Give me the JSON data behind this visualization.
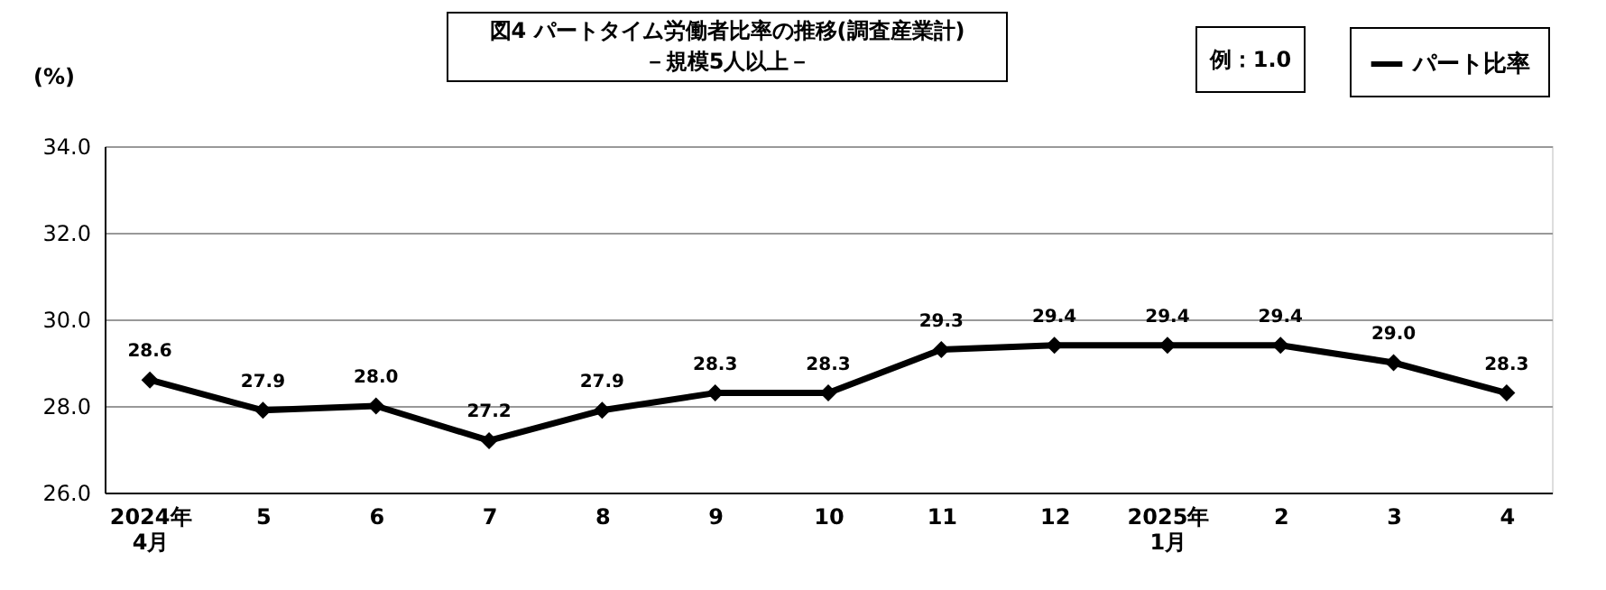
{
  "chart_data": {
    "type": "line",
    "title": [
      "図4  パートタイム労働者比率の推移(調査産業計)",
      "－規模5人以上－"
    ],
    "ylabel": "(%)",
    "categories": [
      "2024年\n4月",
      "5",
      "6",
      "7",
      "8",
      "9",
      "10",
      "11",
      "12",
      "2025年\n1月",
      "2",
      "3",
      "4"
    ],
    "series": [
      {
        "name": "パート比率",
        "color": "#000000",
        "values": [
          28.6,
          27.9,
          28.0,
          27.2,
          27.9,
          28.3,
          28.3,
          29.3,
          29.4,
          29.4,
          29.4,
          29.0,
          28.3
        ]
      }
    ],
    "ylim": [
      26,
      34
    ],
    "yticks": [
      {
        "value": 26,
        "label": "26.0"
      },
      {
        "value": 28,
        "label": "28.0"
      },
      {
        "value": 30,
        "label": "30.0"
      },
      {
        "value": 32,
        "label": "32.0"
      },
      {
        "value": 34,
        "label": "34.0"
      }
    ],
    "value_labels": [
      "28.6",
      "27.9",
      "28.0",
      "27.2",
      "27.9",
      "28.3",
      "28.3",
      "29.3",
      "29.4",
      "29.4",
      "29.4",
      "29.0",
      "28.3"
    ],
    "grid": "y",
    "legend": "top right",
    "marker": "diamond",
    "line_style": "solid",
    "annotations": [
      "例：1.0"
    ]
  }
}
